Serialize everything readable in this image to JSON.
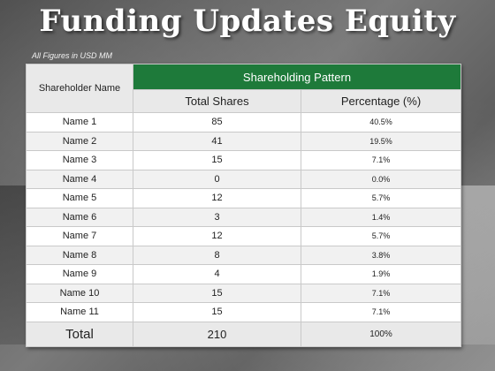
{
  "title": "Funding Updates Equity",
  "note": "All Figures in USD MM",
  "table": {
    "name_header": "Shareholder Name",
    "group_header": "Shareholding Pattern",
    "shares_header": "Total Shares",
    "pct_header": "Percentage (%)",
    "rows": [
      {
        "name": "Name 1",
        "shares": "85",
        "pct": "40.5%"
      },
      {
        "name": "Name 2",
        "shares": "41",
        "pct": "19.5%"
      },
      {
        "name": "Name 3",
        "shares": "15",
        "pct": "7.1%"
      },
      {
        "name": "Name 4",
        "shares": "0",
        "pct": "0.0%"
      },
      {
        "name": "Name 5",
        "shares": "12",
        "pct": "5.7%"
      },
      {
        "name": "Name 6",
        "shares": "3",
        "pct": "1.4%"
      },
      {
        "name": "Name 7",
        "shares": "12",
        "pct": "5.7%"
      },
      {
        "name": "Name 8",
        "shares": "8",
        "pct": "3.8%"
      },
      {
        "name": "Name 9",
        "shares": "4",
        "pct": "1.9%"
      },
      {
        "name": "Name 10",
        "shares": "15",
        "pct": "7.1%"
      },
      {
        "name": "Name 11",
        "shares": "15",
        "pct": "7.1%"
      }
    ],
    "total": {
      "label": "Total",
      "shares": "210",
      "pct": "100%"
    }
  },
  "colors": {
    "header_green": "#1e7a3a"
  }
}
